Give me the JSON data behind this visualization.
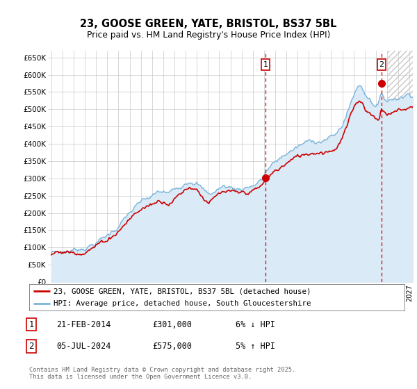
{
  "title": "23, GOOSE GREEN, YATE, BRISTOL, BS37 5BL",
  "subtitle": "Price paid vs. HM Land Registry's House Price Index (HPI)",
  "ylabel_ticks": [
    "£0",
    "£50K",
    "£100K",
    "£150K",
    "£200K",
    "£250K",
    "£300K",
    "£350K",
    "£400K",
    "£450K",
    "£500K",
    "£550K",
    "£600K",
    "£650K"
  ],
  "ylim": [
    0,
    670000
  ],
  "xlim_start": 1994.7,
  "xlim_end": 2027.3,
  "sale1_date": 2014.13,
  "sale1_price": 301000,
  "sale1_label": "1",
  "sale2_date": 2024.51,
  "sale2_price": 575000,
  "sale2_label": "2",
  "hpi_fill_color": "#daeaf7",
  "hpi_line_color": "#7ab4d8",
  "red_line_color": "#cc0000",
  "sale_color": "#cc0000",
  "vline_color": "#cc0000",
  "grid_color": "#c8c8c8",
  "bg_color": "#ffffff",
  "legend_sale_label": "23, GOOSE GREEN, YATE, BRISTOL, BS37 5BL (detached house)",
  "legend_hpi_label": "HPI: Average price, detached house, South Gloucestershire",
  "annotation1": "21-FEB-2014",
  "annotation1_price": "£301,000",
  "annotation1_pct": "6% ↓ HPI",
  "annotation2": "05-JUL-2024",
  "annotation2_price": "£575,000",
  "annotation2_pct": "5% ↑ HPI",
  "footer": "Contains HM Land Registry data © Crown copyright and database right 2025.\nThis data is licensed under the Open Government Licence v3.0.",
  "hatch_start": 2025.0,
  "future_hatch_color": "#d0d0d0"
}
